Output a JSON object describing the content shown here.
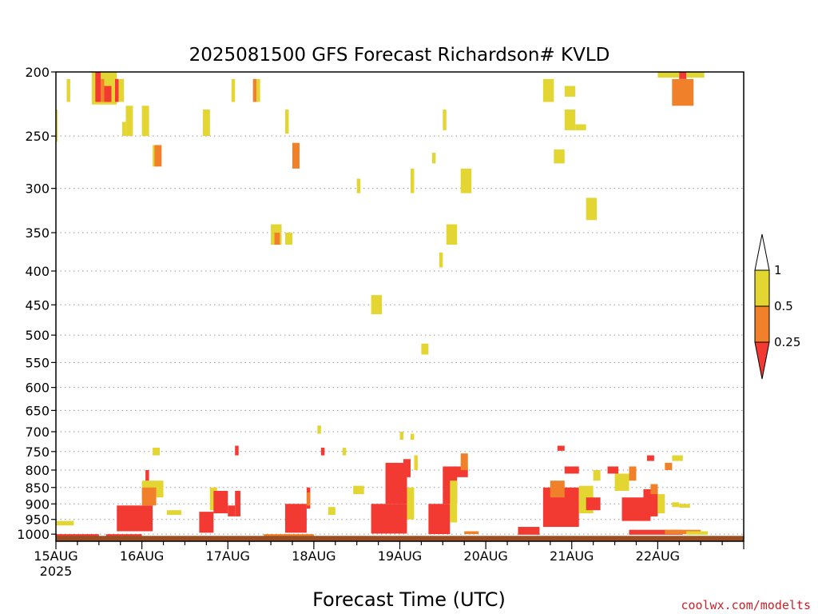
{
  "chart_data": {
    "type": "heatmap",
    "title": "2025081500 GFS Forecast Richardson# KVLD",
    "xlabel": "Forecast Time (UTC)",
    "ylabel": "",
    "y_scale": "log-pressure",
    "ylim_hpa": [
      1025,
      200
    ],
    "y_ticks": [
      200,
      250,
      300,
      350,
      400,
      450,
      500,
      550,
      600,
      650,
      700,
      750,
      800,
      850,
      900,
      950,
      1000
    ],
    "x_range_hours": [
      0,
      192
    ],
    "x_ticks": [
      {
        "hour": 0,
        "label": "15AUG",
        "sublabel": "2025"
      },
      {
        "hour": 24,
        "label": "16AUG",
        "sublabel": ""
      },
      {
        "hour": 48,
        "label": "17AUG",
        "sublabel": ""
      },
      {
        "hour": 72,
        "label": "18AUG",
        "sublabel": ""
      },
      {
        "hour": 96,
        "label": "19AUG",
        "sublabel": ""
      },
      {
        "hour": 120,
        "label": "20AUG",
        "sublabel": ""
      },
      {
        "hour": 144,
        "label": "21AUG",
        "sublabel": ""
      },
      {
        "hour": 168,
        "label": "22AUG",
        "sublabel": ""
      }
    ],
    "grid": "horizontal dotted lines at pressure ticks",
    "ground_color": "#9a4e24",
    "colorbar": {
      "placement": "right",
      "levels": [
        {
          "label": "1",
          "color": "#ffffff"
        },
        {
          "label": "0.5",
          "color": "#e3d633"
        },
        {
          "label": "0.25",
          "color": "#f0802a"
        },
        {
          "label": "",
          "color": "#f23a32"
        }
      ],
      "bin_colors": {
        "y": "#e3d633",
        "o": "#f0802a",
        "r": "#f23a32"
      }
    },
    "regions": [
      {
        "t0": 0,
        "t1": 0.5,
        "p0": 228,
        "p1": 255,
        "bin": "y"
      },
      {
        "t0": 3,
        "t1": 4,
        "p0": 205,
        "p1": 222,
        "bin": "y"
      },
      {
        "t0": 10,
        "t1": 17,
        "p0": 200,
        "p1": 224,
        "bin": "y"
      },
      {
        "t0": 11,
        "t1": 12.5,
        "p0": 200,
        "p1": 222,
        "bin": "r"
      },
      {
        "t0": 12.5,
        "t1": 13.5,
        "p0": 205,
        "p1": 222,
        "bin": "o"
      },
      {
        "t0": 13.5,
        "t1": 15.5,
        "p0": 210,
        "p1": 222,
        "bin": "r"
      },
      {
        "t0": 17,
        "t1": 19,
        "p0": 205,
        "p1": 222,
        "bin": "y"
      },
      {
        "t0": 16.5,
        "t1": 17.5,
        "p0": 205,
        "p1": 222,
        "bin": "r"
      },
      {
        "t0": 18.5,
        "t1": 19.5,
        "p0": 238,
        "p1": 250,
        "bin": "y"
      },
      {
        "t0": 19.5,
        "t1": 21.5,
        "p0": 225,
        "p1": 250,
        "bin": "y"
      },
      {
        "t0": 24,
        "t1": 26,
        "p0": 225,
        "p1": 250,
        "bin": "y"
      },
      {
        "t0": 27,
        "t1": 28.5,
        "p0": 258,
        "p1": 278,
        "bin": "y"
      },
      {
        "t0": 27.5,
        "t1": 29.5,
        "p0": 258,
        "p1": 278,
        "bin": "o"
      },
      {
        "t0": 41,
        "t1": 43,
        "p0": 228,
        "p1": 250,
        "bin": "y"
      },
      {
        "t0": 49,
        "t1": 50,
        "p0": 205,
        "p1": 222,
        "bin": "y"
      },
      {
        "t0": 55,
        "t1": 56,
        "p0": 205,
        "p1": 222,
        "bin": "o"
      },
      {
        "t0": 56,
        "t1": 57,
        "p0": 205,
        "p1": 222,
        "bin": "y"
      },
      {
        "t0": 64,
        "t1": 65,
        "p0": 228,
        "p1": 248,
        "bin": "y"
      },
      {
        "t0": 66,
        "t1": 68,
        "p0": 256,
        "p1": 280,
        "bin": "o"
      },
      {
        "t0": 60,
        "t1": 63,
        "p0": 340,
        "p1": 365,
        "bin": "y"
      },
      {
        "t0": 61,
        "t1": 62.5,
        "p0": 350,
        "p1": 365,
        "bin": "o"
      },
      {
        "t0": 64,
        "t1": 66,
        "p0": 350,
        "p1": 365,
        "bin": "y"
      },
      {
        "t0": 84,
        "t1": 85,
        "p0": 290,
        "p1": 305,
        "bin": "y"
      },
      {
        "t0": 88,
        "t1": 91,
        "p0": 435,
        "p1": 465,
        "bin": "y"
      },
      {
        "t0": 99,
        "t1": 100,
        "p0": 280,
        "p1": 305,
        "bin": "y"
      },
      {
        "t0": 105,
        "t1": 106,
        "p0": 265,
        "p1": 275,
        "bin": "y"
      },
      {
        "t0": 108,
        "t1": 109,
        "p0": 228,
        "p1": 245,
        "bin": "y"
      },
      {
        "t0": 113,
        "t1": 116,
        "p0": 280,
        "p1": 305,
        "bin": "y"
      },
      {
        "t0": 109,
        "t1": 112,
        "p0": 340,
        "p1": 365,
        "bin": "y"
      },
      {
        "t0": 107,
        "t1": 108,
        "p0": 375,
        "p1": 395,
        "bin": "y"
      },
      {
        "t0": 102,
        "t1": 104,
        "p0": 515,
        "p1": 535,
        "bin": "y"
      },
      {
        "t0": 136,
        "t1": 139,
        "p0": 205,
        "p1": 222,
        "bin": "y"
      },
      {
        "t0": 142,
        "t1": 145,
        "p0": 210,
        "p1": 218,
        "bin": "y"
      },
      {
        "t0": 142,
        "t1": 145,
        "p0": 228,
        "p1": 245,
        "bin": "y"
      },
      {
        "t0": 145,
        "t1": 148,
        "p0": 240,
        "p1": 245,
        "bin": "y"
      },
      {
        "t0": 139,
        "t1": 142,
        "p0": 262,
        "p1": 275,
        "bin": "y"
      },
      {
        "t0": 148,
        "t1": 151,
        "p0": 310,
        "p1": 335,
        "bin": "y"
      },
      {
        "t0": 168,
        "t1": 174,
        "p0": 200,
        "p1": 204,
        "bin": "y"
      },
      {
        "t0": 172,
        "t1": 178,
        "p0": 205,
        "p1": 225,
        "bin": "o"
      },
      {
        "t0": 174,
        "t1": 176,
        "p0": 200,
        "p1": 205,
        "bin": "r"
      },
      {
        "t0": 176,
        "t1": 181,
        "p0": 200,
        "p1": 204,
        "bin": "y"
      },
      {
        "t0": 0,
        "t1": 5,
        "p0": 955,
        "p1": 970,
        "bin": "y"
      },
      {
        "t0": 0,
        "t1": 12,
        "p0": 1000,
        "p1": 1008,
        "bin": "r"
      },
      {
        "t0": 14,
        "t1": 24,
        "p0": 1000,
        "p1": 1008,
        "bin": "r"
      },
      {
        "t0": 17,
        "t1": 27,
        "p0": 905,
        "p1": 990,
        "bin": "r"
      },
      {
        "t0": 24,
        "t1": 30,
        "p0": 830,
        "p1": 880,
        "bin": "y"
      },
      {
        "t0": 24,
        "t1": 28,
        "p0": 850,
        "p1": 905,
        "bin": "o"
      },
      {
        "t0": 25,
        "t1": 26,
        "p0": 800,
        "p1": 830,
        "bin": "r"
      },
      {
        "t0": 27,
        "t1": 29,
        "p0": 740,
        "p1": 760,
        "bin": "y"
      },
      {
        "t0": 31,
        "t1": 35,
        "p0": 920,
        "p1": 935,
        "bin": "y"
      },
      {
        "t0": 40,
        "t1": 44,
        "p0": 925,
        "p1": 995,
        "bin": "r"
      },
      {
        "t0": 43,
        "t1": 45,
        "p0": 850,
        "p1": 920,
        "bin": "y"
      },
      {
        "t0": 44,
        "t1": 48,
        "p0": 860,
        "p1": 930,
        "bin": "r"
      },
      {
        "t0": 48,
        "t1": 50,
        "p0": 905,
        "p1": 940,
        "bin": "r"
      },
      {
        "t0": 50,
        "t1": 51.5,
        "p0": 860,
        "p1": 940,
        "bin": "r"
      },
      {
        "t0": 50,
        "t1": 51,
        "p0": 735,
        "p1": 760,
        "bin": "r"
      },
      {
        "t0": 58,
        "t1": 72,
        "p0": 1000,
        "p1": 1012,
        "bin": "o"
      },
      {
        "t0": 64,
        "t1": 70,
        "p0": 900,
        "p1": 995,
        "bin": "r"
      },
      {
        "t0": 70,
        "t1": 71,
        "p0": 850,
        "p1": 915,
        "bin": "r"
      },
      {
        "t0": 70,
        "t1": 71,
        "p0": 865,
        "p1": 905,
        "bin": "o"
      },
      {
        "t0": 73,
        "t1": 74,
        "p0": 685,
        "p1": 705,
        "bin": "y"
      },
      {
        "t0": 74,
        "t1": 75,
        "p0": 740,
        "p1": 760,
        "bin": "r"
      },
      {
        "t0": 76,
        "t1": 78,
        "p0": 910,
        "p1": 935,
        "bin": "y"
      },
      {
        "t0": 80,
        "t1": 81,
        "p0": 740,
        "p1": 760,
        "bin": "y"
      },
      {
        "t0": 83,
        "t1": 86,
        "p0": 845,
        "p1": 870,
        "bin": "y"
      },
      {
        "t0": 88,
        "t1": 98,
        "p0": 900,
        "p1": 998,
        "bin": "r"
      },
      {
        "t0": 92,
        "t1": 98,
        "p0": 780,
        "p1": 900,
        "bin": "r"
      },
      {
        "t0": 96,
        "t1": 97,
        "p0": 700,
        "p1": 720,
        "bin": "y"
      },
      {
        "t0": 97,
        "t1": 99,
        "p0": 770,
        "p1": 820,
        "bin": "r"
      },
      {
        "t0": 98,
        "t1": 100,
        "p0": 850,
        "p1": 950,
        "bin": "y"
      },
      {
        "t0": 100,
        "t1": 101,
        "p0": 760,
        "p1": 800,
        "bin": "y"
      },
      {
        "t0": 99,
        "t1": 100,
        "p0": 705,
        "p1": 720,
        "bin": "y"
      },
      {
        "t0": 104,
        "t1": 110,
        "p0": 900,
        "p1": 1000,
        "bin": "r"
      },
      {
        "t0": 108,
        "t1": 112,
        "p0": 790,
        "p1": 900,
        "bin": "r"
      },
      {
        "t0": 111,
        "t1": 115,
        "p0": 790,
        "p1": 820,
        "bin": "r"
      },
      {
        "t0": 113,
        "t1": 115,
        "p0": 755,
        "p1": 800,
        "bin": "o"
      },
      {
        "t0": 110,
        "t1": 112,
        "p0": 830,
        "p1": 960,
        "bin": "y"
      },
      {
        "t0": 114,
        "t1": 118,
        "p0": 990,
        "p1": 1000,
        "bin": "o"
      },
      {
        "t0": 129,
        "t1": 135,
        "p0": 975,
        "p1": 1002,
        "bin": "r"
      },
      {
        "t0": 136,
        "t1": 146,
        "p0": 850,
        "p1": 975,
        "bin": "r"
      },
      {
        "t0": 138,
        "t1": 142,
        "p0": 830,
        "p1": 880,
        "bin": "o"
      },
      {
        "t0": 140,
        "t1": 142,
        "p0": 735,
        "p1": 748,
        "bin": "r"
      },
      {
        "t0": 142,
        "t1": 146,
        "p0": 790,
        "p1": 810,
        "bin": "r"
      },
      {
        "t0": 146,
        "t1": 150,
        "p0": 845,
        "p1": 930,
        "bin": "y"
      },
      {
        "t0": 148,
        "t1": 152,
        "p0": 880,
        "p1": 920,
        "bin": "r"
      },
      {
        "t0": 150,
        "t1": 152,
        "p0": 800,
        "p1": 830,
        "bin": "y"
      },
      {
        "t0": 154,
        "t1": 157,
        "p0": 790,
        "p1": 810,
        "bin": "r"
      },
      {
        "t0": 156,
        "t1": 160,
        "p0": 810,
        "p1": 860,
        "bin": "y"
      },
      {
        "t0": 160,
        "t1": 162,
        "p0": 790,
        "p1": 830,
        "bin": "o"
      },
      {
        "t0": 158,
        "t1": 166,
        "p0": 880,
        "p1": 955,
        "bin": "r"
      },
      {
        "t0": 164,
        "t1": 168,
        "p0": 855,
        "p1": 940,
        "bin": "r"
      },
      {
        "t0": 166,
        "t1": 168,
        "p0": 840,
        "p1": 870,
        "bin": "o"
      },
      {
        "t0": 168,
        "t1": 170,
        "p0": 870,
        "p1": 930,
        "bin": "y"
      },
      {
        "t0": 165,
        "t1": 167,
        "p0": 760,
        "p1": 775,
        "bin": "r"
      },
      {
        "t0": 170,
        "t1": 172,
        "p0": 780,
        "p1": 800,
        "bin": "o"
      },
      {
        "t0": 172,
        "t1": 175,
        "p0": 760,
        "p1": 775,
        "bin": "y"
      },
      {
        "t0": 172,
        "t1": 174,
        "p0": 895,
        "p1": 910,
        "bin": "y"
      },
      {
        "t0": 174,
        "t1": 177,
        "p0": 900,
        "p1": 912,
        "bin": "y"
      },
      {
        "t0": 160,
        "t1": 175,
        "p0": 985,
        "p1": 1002,
        "bin": "r"
      },
      {
        "t0": 170,
        "t1": 180,
        "p0": 985,
        "p1": 1000,
        "bin": "o"
      },
      {
        "t0": 176,
        "t1": 182,
        "p0": 990,
        "p1": 1002,
        "bin": "y"
      }
    ]
  },
  "credit": "coolwx.com/modelts"
}
